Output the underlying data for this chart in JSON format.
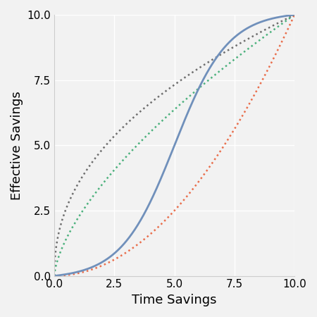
{
  "title": "",
  "xlabel": "Time Savings",
  "ylabel": "Effective Savings",
  "xlim": [
    0,
    10
  ],
  "ylim": [
    0,
    10
  ],
  "xticks": [
    0.0,
    2.5,
    5.0,
    7.5,
    10.0
  ],
  "yticks": [
    0.0,
    2.5,
    5.0,
    7.5,
    10.0
  ],
  "solid_color": "#7090bb",
  "dotted_colors": [
    "#606060",
    "#3aaa70",
    "#e8603a"
  ],
  "background_color": "#f2f2f2",
  "grid_color": "#ffffff",
  "xlabel_fontsize": 13,
  "ylabel_fontsize": 13,
  "tick_fontsize": 11,
  "line_width": 2.0,
  "dot_linewidth": 1.8
}
